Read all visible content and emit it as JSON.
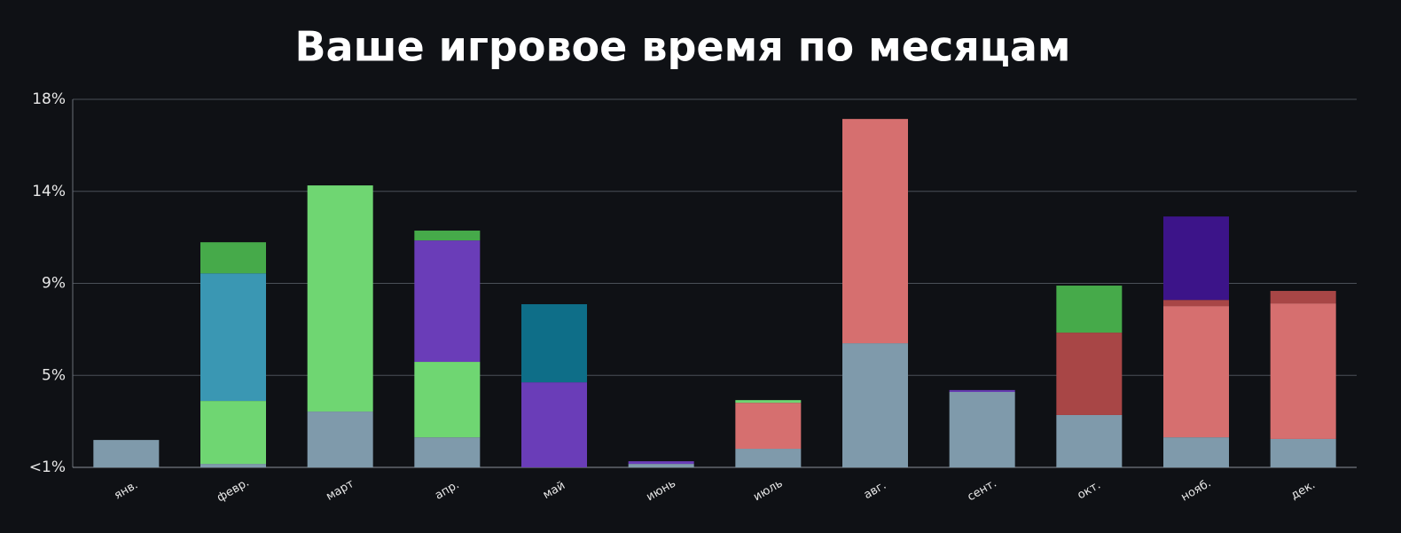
{
  "chart_data": {
    "type": "stacked-bar",
    "title": "Ваше игровое время по месяцам",
    "categories": [
      "янв.",
      "февр.",
      "март",
      "апр.",
      "май",
      "июнь",
      "июль",
      "авг.",
      "сент.",
      "окт.",
      "нояб.",
      "дек."
    ],
    "ylim": [
      0,
      18
    ],
    "yticks": [
      {
        "value": 0,
        "label": "<1%"
      },
      {
        "value": 4.5,
        "label": "5%"
      },
      {
        "value": 9,
        "label": "9%"
      },
      {
        "value": 13.5,
        "label": "14%"
      },
      {
        "value": 18,
        "label": "18%"
      }
    ],
    "grid": true,
    "series": [
      {
        "color": "#7f9aab",
        "values": [
          1.34,
          0.17,
          2.73,
          1.47,
          0,
          0.17,
          0.91,
          6.07,
          3.69,
          2.56,
          1.47,
          1.39
        ]
      },
      {
        "color": "#d66f6f",
        "values": [
          0,
          0,
          0,
          0,
          0,
          0,
          2.25,
          10.97,
          0,
          0,
          6.42,
          6.63
        ]
      },
      {
        "color": "#6fd672",
        "values": [
          0,
          3.08,
          11.06,
          3.69,
          0,
          0,
          0.13,
          0,
          0,
          0,
          0,
          0
        ]
      },
      {
        "color": "#a84646",
        "values": [
          0,
          0,
          0,
          0,
          0,
          0,
          0,
          0,
          0,
          4.03,
          0.3,
          0.61
        ]
      },
      {
        "color": "#6a3db8",
        "values": [
          0,
          0,
          0,
          5.94,
          4.16,
          0.13,
          0,
          0,
          0.09,
          0,
          0,
          0
        ]
      },
      {
        "color": "#3a97b3",
        "values": [
          0,
          6.24,
          0,
          0,
          0,
          0,
          0,
          0,
          0,
          0,
          0,
          0
        ]
      },
      {
        "color": "#0e6e88",
        "values": [
          0,
          0,
          0,
          0,
          3.82,
          0,
          0,
          0,
          0,
          0,
          0,
          0
        ]
      },
      {
        "color": "#46aa4a",
        "values": [
          0,
          1.52,
          0,
          0.48,
          0,
          0,
          0,
          0,
          0,
          2.3,
          0,
          0
        ]
      },
      {
        "color": "#3c1489",
        "values": [
          0,
          0,
          0,
          0,
          0,
          0,
          0,
          0,
          0,
          0,
          4.08,
          0
        ]
      }
    ]
  }
}
